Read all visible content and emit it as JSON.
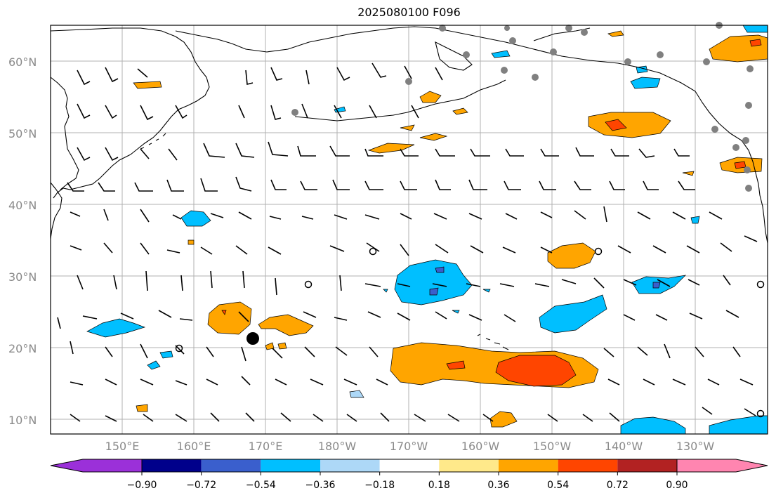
{
  "title": "2025080100 F096",
  "lat_labels": [
    "60°N",
    "50°N",
    "40°N",
    "30°N",
    "20°N",
    "10°N"
  ],
  "lon_labels": [
    "150°E",
    "160°E",
    "170°E",
    "180°W",
    "170°W",
    "160°W",
    "150°W",
    "140°W",
    "130°W"
  ],
  "colorbar": {
    "tick_labels": [
      "−0.90",
      "−0.72",
      "−0.54",
      "−0.36",
      "−0.18",
      "0.18",
      "0.36",
      "0.54",
      "0.72",
      "0.90"
    ],
    "colors": [
      "#9b30d9",
      "#00008b",
      "#3a5fcd",
      "#00bfff",
      "#add8f7",
      "#ffffff",
      "#ffe98a",
      "#ffa500",
      "#ff4500",
      "#b22222",
      "#ff85b0"
    ]
  },
  "map_features": {
    "land_outline_color": "#000000",
    "grid_color": "#b0b0b0",
    "barb_color": "#000000",
    "station_marker_color": "#808080",
    "typhoon_marker_color": "#000000"
  }
}
